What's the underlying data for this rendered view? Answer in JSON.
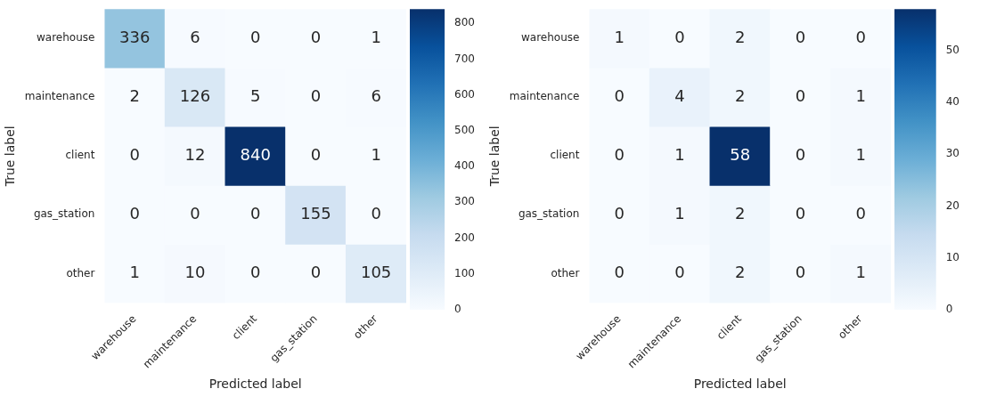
{
  "chart_data": [
    {
      "type": "heatmap",
      "xlabel": "Predicted label",
      "ylabel": "True label",
      "categories": [
        "warehouse",
        "maintenance",
        "client",
        "gas_station",
        "other"
      ],
      "y_categories": [
        "warehouse",
        "maintenance",
        "client",
        "gas_station",
        "other"
      ],
      "cells": [
        [
          336,
          6,
          0,
          0,
          1
        ],
        [
          2,
          126,
          5,
          0,
          6
        ],
        [
          0,
          12,
          840,
          0,
          1
        ],
        [
          0,
          0,
          0,
          155,
          0
        ],
        [
          1,
          10,
          0,
          0,
          105
        ]
      ],
      "clim": [
        0,
        840
      ],
      "cticks": [
        0,
        100,
        200,
        300,
        400,
        500,
        600,
        700,
        800
      ],
      "data_labels": true
    },
    {
      "type": "heatmap",
      "xlabel": "Predicted label",
      "ylabel": "True label",
      "categories": [
        "warehouse",
        "maintenance",
        "client",
        "gas_station",
        "other"
      ],
      "y_categories": [
        "warehouse",
        "maintenance",
        "client",
        "gas_station",
        "other"
      ],
      "cells": [
        [
          1,
          0,
          2,
          0,
          0
        ],
        [
          0,
          4,
          2,
          0,
          1
        ],
        [
          0,
          1,
          58,
          0,
          1
        ],
        [
          0,
          1,
          2,
          0,
          0
        ],
        [
          0,
          0,
          2,
          0,
          1
        ]
      ],
      "clim": [
        0,
        58
      ],
      "cticks": [
        0,
        10,
        20,
        30,
        40,
        50
      ],
      "data_labels": true
    }
  ]
}
